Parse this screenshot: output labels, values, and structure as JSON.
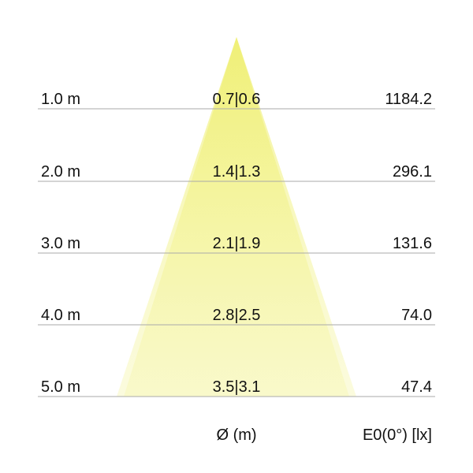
{
  "rows": [
    {
      "distance": "1.0 m",
      "diameter": "0.7|0.6",
      "illuminance": "1184.2"
    },
    {
      "distance": "2.0 m",
      "diameter": "1.4|1.3",
      "illuminance": "296.1"
    },
    {
      "distance": "3.0 m",
      "diameter": "2.1|1.9",
      "illuminance": "131.6"
    },
    {
      "distance": "4.0 m",
      "diameter": "2.8|2.5",
      "illuminance": "74.0"
    },
    {
      "distance": "5.0 m",
      "diameter": "3.5|3.1",
      "illuminance": "47.4"
    }
  ],
  "footer": {
    "diameter_label": "Ø (m)",
    "illuminance_label": "E0(0°) [lx]"
  },
  "colors": {
    "cone": "#f2f27a",
    "line": "#aaaaaa",
    "text": "#111111"
  }
}
